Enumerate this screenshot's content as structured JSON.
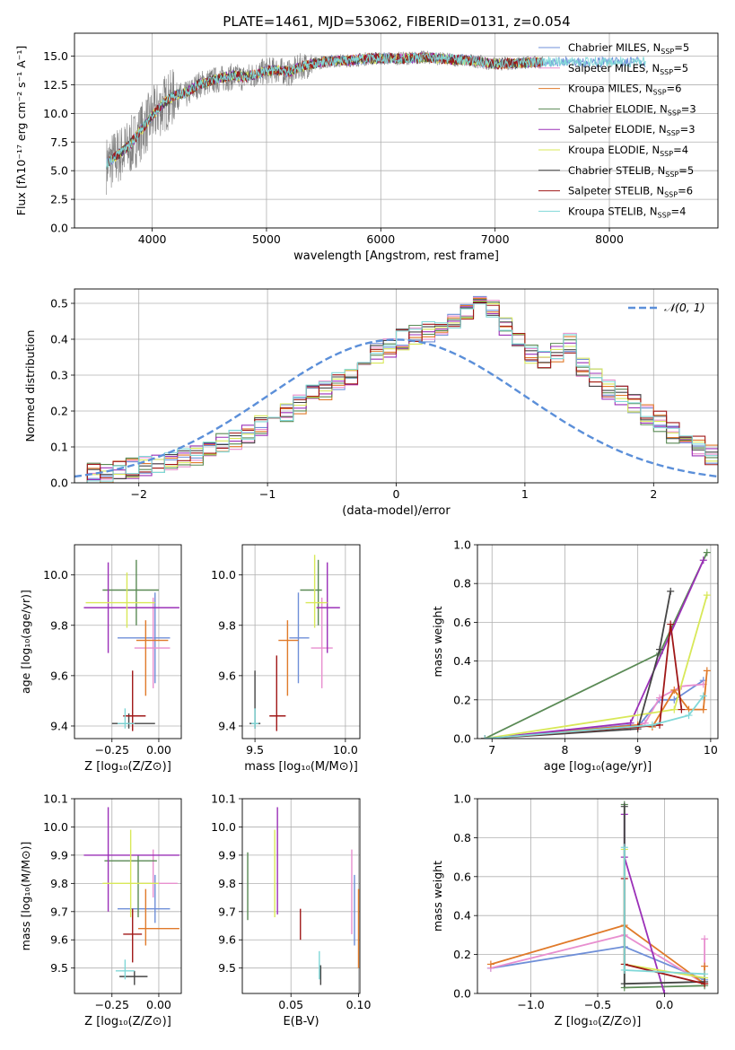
{
  "figure": {
    "title": "PLATE=1461, MJD=53062, FIBERID=0131, z=0.054"
  },
  "colors": {
    "grid": "#b0b0b0",
    "normal": "#5b8fd9"
  },
  "series": [
    {
      "name": "Chabrier MILES, N",
      "nssp": "=5",
      "color": "#6f8fd8"
    },
    {
      "name": "Salpeter MILES, N",
      "nssp": "=5",
      "color": "#e88fcf"
    },
    {
      "name": "Kroupa MILES, N",
      "nssp": "=6",
      "color": "#e07a2a"
    },
    {
      "name": "Chabrier ELODIE, N",
      "nssp": "=3",
      "color": "#5a8a55"
    },
    {
      "name": "Salpeter ELODIE, N",
      "nssp": "=3",
      "color": "#9b30b8"
    },
    {
      "name": "Kroupa ELODIE, N",
      "nssp": "=4",
      "color": "#d8e858"
    },
    {
      "name": "Chabrier STELIB, N",
      "nssp": "=5",
      "color": "#454545"
    },
    {
      "name": "Salpeter STELIB, N",
      "nssp": "=6",
      "color": "#a01818"
    },
    {
      "name": "Kroupa STELIB, N",
      "nssp": "=4",
      "color": "#80d8d8"
    }
  ],
  "chart_data": [
    {
      "id": "spectrum",
      "type": "line",
      "xlabel": "wavelength [Angstrom, rest frame]",
      "ylabel": "Flux [fλ10⁻¹⁷ erg cm⁻² s⁻¹ A⁻¹]",
      "xlim": [
        3320,
        8950
      ],
      "ylim": [
        0,
        17
      ],
      "xticks": [
        4000,
        5000,
        6000,
        7000,
        8000
      ],
      "yticks": [
        0.0,
        2.5,
        5.0,
        7.5,
        10.0,
        12.5,
        15.0
      ],
      "data_x": [
        3600,
        3700,
        3800,
        3900,
        4000,
        4100,
        4200,
        4300,
        4400,
        4500,
        4600,
        4700,
        4800,
        4900,
        5000,
        5100,
        5200,
        5300,
        5400,
        5500,
        5600,
        5700,
        5800,
        5900,
        6000,
        6200,
        6400,
        6600,
        6800,
        7000,
        7200,
        7400
      ],
      "data_y": [
        5.5,
        6.3,
        7.0,
        8.4,
        9.7,
        10.8,
        11.5,
        11.6,
        12.5,
        12.8,
        13.0,
        13.2,
        13.1,
        13.4,
        13.7,
        13.8,
        13.5,
        14.1,
        14.3,
        14.5,
        14.6,
        14.6,
        14.7,
        14.8,
        14.8,
        14.8,
        14.9,
        14.7,
        14.6,
        14.3,
        14.4,
        14.5
      ],
      "model_x": [
        3600,
        3700,
        3800,
        3900,
        4000,
        4100,
        4200,
        4300,
        4400,
        4500,
        4600,
        4700,
        4800,
        4900,
        5000,
        5100,
        5200,
        5300,
        5400,
        5500,
        5600,
        5700,
        5800,
        5900,
        6000,
        6200,
        6400,
        6600,
        6800,
        7000,
        7200,
        7400
      ],
      "model_y": [
        5.6,
        6.4,
        7.2,
        8.5,
        9.8,
        10.9,
        11.6,
        11.8,
        12.5,
        12.8,
        13.1,
        13.3,
        13.2,
        13.4,
        13.7,
        13.8,
        13.6,
        14.1,
        14.3,
        14.5,
        14.6,
        14.6,
        14.7,
        14.8,
        14.8,
        14.8,
        14.9,
        14.7,
        14.6,
        14.3,
        14.4,
        14.5
      ]
    },
    {
      "id": "residuals",
      "type": "histogram",
      "xlabel": "(data-model)/error",
      "ylabel": "Normed distribution",
      "xlim": [
        -2.5,
        2.5
      ],
      "ylim": [
        0,
        0.54
      ],
      "xticks": [
        -2,
        -1,
        0,
        1,
        2
      ],
      "yticks": [
        0.0,
        0.1,
        0.2,
        0.3,
        0.4,
        0.5
      ],
      "bin_start": -2.5,
      "bin_width": 0.1,
      "hist": [
        0.02,
        0.025,
        0.03,
        0.035,
        0.04,
        0.05,
        0.05,
        0.06,
        0.065,
        0.075,
        0.09,
        0.11,
        0.12,
        0.14,
        0.16,
        0.18,
        0.2,
        0.22,
        0.25,
        0.26,
        0.28,
        0.3,
        0.33,
        0.36,
        0.38,
        0.4,
        0.41,
        0.42,
        0.44,
        0.45,
        0.47,
        0.49,
        0.48,
        0.44,
        0.39,
        0.36,
        0.34,
        0.36,
        0.39,
        0.32,
        0.29,
        0.26,
        0.24,
        0.22,
        0.19,
        0.17,
        0.14,
        0.12,
        0.1,
        0.08
      ],
      "normal_label": "𝒩(0, 1)"
    },
    {
      "id": "age-vs-Z",
      "type": "errorbar",
      "xlabel": "Z [log₁₀(Z/Z⊙)]",
      "ylabel": "age  [log₁₀(age/yr)]",
      "xlim": [
        -0.45,
        0.12
      ],
      "ylim": [
        9.35,
        10.12
      ],
      "xticks": [
        -0.25,
        0.0
      ],
      "xticklabels": [
        "−0.25",
        "0.00"
      ],
      "yticks": [
        9.4,
        9.6,
        9.8,
        10.0
      ],
      "points": [
        {
          "x": -0.02,
          "y": 9.75,
          "xerr": [
            0.2,
            0.08
          ],
          "yerr": [
            0.18,
            0.18
          ]
        },
        {
          "x": -0.03,
          "y": 9.71,
          "xerr": [
            0.1,
            0.09
          ],
          "yerr": [
            0.16,
            0.2
          ]
        },
        {
          "x": -0.07,
          "y": 9.74,
          "xerr": [
            0.05,
            0.12
          ],
          "yerr": [
            0.22,
            0.08
          ]
        },
        {
          "x": -0.12,
          "y": 9.94,
          "xerr": [
            0.18,
            0.12
          ],
          "yerr": [
            0.14,
            0.12
          ]
        },
        {
          "x": -0.27,
          "y": 9.87,
          "xerr": [
            0.13,
            0.38
          ],
          "yerr": [
            0.18,
            0.18
          ]
        },
        {
          "x": -0.17,
          "y": 9.89,
          "xerr": [
            0.22,
            0.15
          ],
          "yerr": [
            0.1,
            0.12
          ]
        },
        {
          "x": -0.16,
          "y": 9.41,
          "xerr": [
            0.09,
            0.14
          ],
          "yerr": [
            0.02,
            0.04
          ]
        },
        {
          "x": -0.14,
          "y": 9.44,
          "xerr": [
            0.05,
            0.07
          ],
          "yerr": [
            0.06,
            0.18
          ]
        },
        {
          "x": -0.18,
          "y": 9.41,
          "xerr": [
            0.04,
            0.05
          ],
          "yerr": [
            0.02,
            0.06
          ]
        }
      ]
    },
    {
      "id": "age-vs-mass",
      "type": "errorbar",
      "xlabel": "mass [log₁₀(M/M⊙)]",
      "ylabel": "",
      "xlim": [
        9.43,
        10.08
      ],
      "ylim": [
        9.35,
        10.12
      ],
      "xticks": [
        9.5,
        10.0
      ],
      "xticklabels": [
        "9.5",
        "10.0"
      ],
      "yticks": [
        9.4,
        9.6,
        9.8,
        10.0
      ],
      "points": [
        {
          "x": 9.74,
          "y": 9.75,
          "xerr": [
            0.05,
            0.06
          ],
          "yerr": [
            0.18,
            0.18
          ]
        },
        {
          "x": 9.87,
          "y": 9.71,
          "xerr": [
            0.06,
            0.06
          ],
          "yerr": [
            0.16,
            0.2
          ]
        },
        {
          "x": 9.68,
          "y": 9.74,
          "xerr": [
            0.05,
            0.06
          ],
          "yerr": [
            0.22,
            0.08
          ]
        },
        {
          "x": 9.85,
          "y": 9.94,
          "xerr": [
            0.1,
            0.02
          ],
          "yerr": [
            0.14,
            0.12
          ]
        },
        {
          "x": 9.9,
          "y": 9.87,
          "xerr": [
            0.06,
            0.07
          ],
          "yerr": [
            0.18,
            0.18
          ]
        },
        {
          "x": 9.83,
          "y": 9.89,
          "xerr": [
            0.05,
            0.07
          ],
          "yerr": [
            0.1,
            0.19
          ]
        },
        {
          "x": 9.5,
          "y": 9.41,
          "xerr": [
            0.03,
            0.03
          ],
          "yerr": [
            0.02,
            0.21
          ]
        },
        {
          "x": 9.62,
          "y": 9.44,
          "xerr": [
            0.04,
            0.05
          ],
          "yerr": [
            0.06,
            0.24
          ]
        },
        {
          "x": 9.5,
          "y": 9.41,
          "xerr": [
            0.02,
            0.02
          ],
          "yerr": [
            0.02,
            0.06
          ]
        }
      ]
    },
    {
      "id": "massweight-vs-age",
      "type": "line",
      "xlabel": "age  [log₁₀(age/yr)]",
      "ylabel": "mass weight",
      "xlim": [
        6.8,
        10.1
      ],
      "ylim": [
        0,
        1.0
      ],
      "xticks": [
        7,
        8,
        9,
        10
      ],
      "yticks": [
        0.0,
        0.2,
        0.4,
        0.6,
        0.8,
        1.0
      ],
      "lines": [
        {
          "x": [
            6.9,
            8.9,
            9.0,
            9.3,
            9.5,
            9.9
          ],
          "y": [
            0.0,
            0.07,
            0.06,
            0.2,
            0.2,
            0.3
          ]
        },
        {
          "x": [
            6.9,
            8.9,
            9.1,
            9.3,
            9.6,
            9.9
          ],
          "y": [
            0.0,
            0.06,
            0.08,
            0.21,
            0.27,
            0.28
          ]
        },
        {
          "x": [
            6.9,
            9.0,
            9.2,
            9.5,
            9.7,
            9.9,
            9.95
          ],
          "y": [
            0.0,
            0.07,
            0.06,
            0.25,
            0.15,
            0.15,
            0.35
          ]
        },
        {
          "x": [
            6.9,
            9.3,
            9.95
          ],
          "y": [
            0.0,
            0.44,
            0.96
          ]
        },
        {
          "x": [
            6.9,
            8.9,
            9.9
          ],
          "y": [
            0.0,
            0.08,
            0.92
          ]
        },
        {
          "x": [
            6.9,
            9.5,
            9.95
          ],
          "y": [
            0.0,
            0.15,
            0.74
          ]
        },
        {
          "x": [
            6.9,
            9.0,
            9.3,
            9.45
          ],
          "y": [
            0.0,
            0.05,
            0.46,
            0.76
          ]
        },
        {
          "x": [
            6.9,
            9.0,
            9.3,
            9.45,
            9.6
          ],
          "y": [
            0.0,
            0.06,
            0.07,
            0.59,
            0.15
          ]
        },
        {
          "x": [
            6.9,
            9.2,
            9.7,
            9.9
          ],
          "y": [
            0.0,
            0.07,
            0.12,
            0.22
          ]
        }
      ]
    },
    {
      "id": "mass-vs-Z",
      "type": "errorbar",
      "xlabel": "Z [log₁₀(Z/Z⊙)]",
      "ylabel": "mass [log₁₀(M/M⊙)]",
      "xlim": [
        -0.45,
        0.12
      ],
      "ylim": [
        9.41,
        10.1
      ],
      "xticks": [
        -0.25,
        0.0
      ],
      "xticklabels": [
        "−0.25",
        "0.00"
      ],
      "yticks": [
        9.5,
        9.6,
        9.7,
        9.8,
        9.9,
        10.0,
        10.1
      ],
      "points": [
        {
          "x": -0.02,
          "y": 9.71,
          "xerr": [
            0.2,
            0.08
          ],
          "yerr": [
            0.05,
            0.12
          ]
        },
        {
          "x": -0.03,
          "y": 9.8,
          "xerr": [
            0.08,
            0.13
          ],
          "yerr": [
            0.05,
            0.12
          ]
        },
        {
          "x": -0.07,
          "y": 9.64,
          "xerr": [
            0.04,
            0.18
          ],
          "yerr": [
            0.06,
            0.14
          ]
        },
        {
          "x": -0.11,
          "y": 9.88,
          "xerr": [
            0.18,
            0.1
          ],
          "yerr": [
            0.2,
            0.02
          ]
        },
        {
          "x": -0.27,
          "y": 9.9,
          "xerr": [
            0.13,
            0.38
          ],
          "yerr": [
            0.2,
            0.17
          ]
        },
        {
          "x": -0.15,
          "y": 9.8,
          "xerr": [
            0.15,
            0.15
          ],
          "yerr": [
            0.12,
            0.19
          ]
        },
        {
          "x": -0.13,
          "y": 9.47,
          "xerr": [
            0.08,
            0.07
          ],
          "yerr": [
            0.03,
            0.02
          ]
        },
        {
          "x": -0.14,
          "y": 9.62,
          "xerr": [
            0.05,
            0.05
          ],
          "yerr": [
            0.1,
            0.09
          ]
        },
        {
          "x": -0.18,
          "y": 9.49,
          "xerr": [
            0.05,
            0.05
          ],
          "yerr": [
            0.03,
            0.04
          ]
        }
      ]
    },
    {
      "id": "mass-vs-EBV",
      "type": "errorbar",
      "xlabel": "E(B-V)",
      "ylabel": "",
      "xlim": [
        0.014,
        0.101
      ],
      "ylim": [
        9.41,
        10.1
      ],
      "xticks": [
        0.05,
        0.1
      ],
      "xticklabels": [
        "0.05",
        "0.10"
      ],
      "yticks": [
        9.5,
        9.6,
        9.7,
        9.8,
        9.9,
        10.0,
        10.1
      ],
      "points": [
        {
          "x": 0.097,
          "y": 9.71,
          "yerr": [
            0.13,
            0.12
          ]
        },
        {
          "x": 0.095,
          "y": 9.8,
          "yerr": [
            0.18,
            0.12
          ]
        },
        {
          "x": 0.1,
          "y": 9.64,
          "yerr": [
            0.14,
            0.14
          ]
        },
        {
          "x": 0.018,
          "y": 9.79,
          "yerr": [
            0.12,
            0.12
          ]
        },
        {
          "x": 0.04,
          "y": 9.88,
          "yerr": [
            0.19,
            0.19
          ]
        },
        {
          "x": 0.038,
          "y": 9.8,
          "yerr": [
            0.12,
            0.19
          ]
        },
        {
          "x": 0.072,
          "y": 9.49,
          "yerr": [
            0.05,
            0.02
          ]
        },
        {
          "x": 0.057,
          "y": 9.65,
          "yerr": [
            0.05,
            0.06
          ]
        },
        {
          "x": 0.071,
          "y": 9.5,
          "yerr": [
            0.04,
            0.06
          ]
        }
      ]
    },
    {
      "id": "massweight-vs-Z",
      "type": "line",
      "xlabel": "Z [log₁₀(Z/Z⊙)]",
      "ylabel": "mass weight",
      "xlim": [
        -1.4,
        0.4
      ],
      "ylim": [
        0,
        1.0
      ],
      "xticks": [
        -1.0,
        -0.5,
        0.0
      ],
      "xticklabels": [
        "−1.0",
        "−0.5",
        "0.0"
      ],
      "yticks": [
        0.0,
        0.2,
        0.4,
        0.6,
        0.8,
        1.0
      ],
      "lines": [
        {
          "x": [
            -1.3,
            -0.3,
            0.3
          ],
          "y": [
            0.13,
            0.24,
            0.07
          ]
        },
        {
          "x": [
            -1.3,
            -0.3,
            0.3,
            0.3
          ],
          "y": [
            0.13,
            0.3,
            0.05,
            0.28
          ]
        },
        {
          "x": [
            -1.3,
            -0.3,
            0.3,
            0.3
          ],
          "y": [
            0.15,
            0.35,
            0.05,
            0.14
          ]
        },
        {
          "x": [
            -0.3,
            -0.3,
            0.3
          ],
          "y": [
            0.97,
            0.03,
            0.04
          ]
        },
        {
          "x": [
            -0.3,
            -0.3,
            0.0
          ],
          "y": [
            0.92,
            0.7,
            0.0
          ]
        },
        {
          "x": [
            -0.3,
            -0.3,
            0.3
          ],
          "y": [
            0.74,
            0.15,
            0.08
          ]
        },
        {
          "x": [
            -0.3,
            -0.3,
            0.3
          ],
          "y": [
            0.96,
            0.05,
            0.06
          ]
        },
        {
          "x": [
            -0.3,
            -0.3,
            0.3
          ],
          "y": [
            0.59,
            0.15,
            0.05
          ]
        },
        {
          "x": [
            -0.3,
            -0.3,
            0.3
          ],
          "y": [
            0.75,
            0.12,
            0.1
          ]
        }
      ]
    }
  ]
}
